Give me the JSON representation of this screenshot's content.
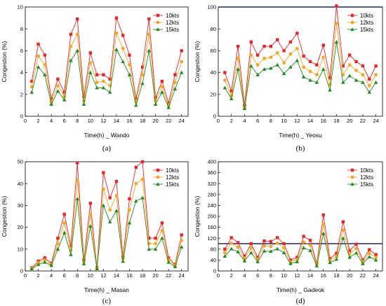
{
  "chart_data": [
    {
      "panel": "(a)",
      "type": "line",
      "xlabel": "Time(h) _ Wando",
      "ylabel": "Congestion (%)",
      "xlim": [
        0,
        25
      ],
      "ylim": [
        0,
        10
      ],
      "xticks": [
        0,
        2,
        4,
        6,
        8,
        10,
        12,
        14,
        16,
        18,
        20,
        22,
        24
      ],
      "yticks": [
        0,
        2,
        4,
        6,
        8,
        10
      ],
      "reference_line": null,
      "legend_position": "top-right",
      "x": [
        1,
        2,
        3,
        4,
        5,
        6,
        7,
        8,
        9,
        10,
        11,
        12,
        13,
        14,
        15,
        16,
        17,
        18,
        19,
        20,
        21,
        22,
        23,
        24
      ],
      "series": [
        {
          "name": "10kts",
          "color": "#e8262a",
          "marker": "square",
          "values": [
            3.2,
            6.6,
            5.6,
            1.6,
            3.4,
            2.2,
            7.5,
            8.9,
            1.8,
            5.8,
            3.8,
            3.8,
            3.4,
            9.0,
            7.4,
            5.6,
            1.6,
            4.5,
            8.9,
            1.7,
            3.2,
            1.2,
            3.8,
            6.0
          ]
        },
        {
          "name": "12kts",
          "color": "#f5a623",
          "marker": "circle",
          "values": [
            2.7,
            5.5,
            4.7,
            1.3,
            2.8,
            1.8,
            6.4,
            7.5,
            1.4,
            4.9,
            3.1,
            3.2,
            2.8,
            7.6,
            6.2,
            4.7,
            1.3,
            3.8,
            7.5,
            1.4,
            2.7,
            1.0,
            3.1,
            5.0
          ]
        },
        {
          "name": "15kts",
          "color": "#1f8a1f",
          "marker": "triangle",
          "values": [
            2.2,
            4.5,
            3.8,
            1.1,
            2.3,
            1.5,
            5.1,
            6.0,
            1.1,
            4.0,
            2.6,
            2.6,
            2.2,
            6.1,
            5.0,
            3.8,
            1.0,
            3.0,
            6.0,
            1.1,
            2.2,
            0.8,
            2.5,
            4.0
          ]
        }
      ]
    },
    {
      "panel": "(b)",
      "type": "line",
      "xlabel": "Time(h) _ Yeosu",
      "ylabel": "Congestion (%)",
      "xlim": [
        0,
        25
      ],
      "ylim": [
        0,
        100
      ],
      "xticks": [
        0,
        2,
        4,
        6,
        8,
        10,
        12,
        14,
        16,
        18,
        20,
        22,
        24
      ],
      "yticks": [
        0,
        20,
        40,
        60,
        80,
        100
      ],
      "reference_line": 100,
      "legend_position": "top-right",
      "x": [
        1,
        2,
        3,
        4,
        5,
        6,
        7,
        8,
        9,
        10,
        11,
        12,
        13,
        14,
        15,
        16,
        17,
        18,
        19,
        20,
        21,
        22,
        23,
        24
      ],
      "series": [
        {
          "name": "10kts",
          "color": "#e8262a",
          "marker": "square",
          "values": [
            40,
            23,
            64,
            10,
            68,
            56,
            64,
            64,
            70,
            60,
            68,
            76,
            55,
            50,
            47,
            65,
            35,
            101,
            46,
            56,
            50,
            46,
            34,
            46
          ]
        },
        {
          "name": "12kts",
          "color": "#f5a623",
          "marker": "circle",
          "values": [
            33,
            19,
            53,
            8,
            56,
            47,
            53,
            54,
            58,
            49,
            57,
            62,
            45,
            41,
            38,
            54,
            29,
            85,
            38,
            47,
            42,
            38,
            28,
            38
          ]
        },
        {
          "name": "15kts",
          "color": "#1f8a1f",
          "marker": "triangle",
          "values": [
            26,
            16,
            43,
            7,
            46,
            38,
            43,
            44,
            47,
            39,
            45,
            51,
            36,
            33,
            31,
            43,
            24,
            68,
            31,
            37,
            33,
            31,
            22,
            31
          ]
        }
      ]
    },
    {
      "panel": "(c)",
      "type": "line",
      "xlabel": "Time(h) _ Masan",
      "ylabel": "Congestion (%)",
      "xlim": [
        0,
        25
      ],
      "ylim": [
        0,
        50
      ],
      "xticks": [
        0,
        2,
        4,
        6,
        8,
        10,
        12,
        14,
        16,
        18,
        20,
        22,
        24
      ],
      "yticks": [
        0,
        10,
        20,
        30,
        40,
        50
      ],
      "reference_line": null,
      "legend_position": "top-right",
      "x": [
        1,
        2,
        3,
        4,
        5,
        6,
        7,
        8,
        9,
        10,
        11,
        12,
        13,
        14,
        15,
        16,
        17,
        18,
        19,
        20,
        21,
        22,
        23,
        24
      ],
      "series": [
        {
          "name": "10kts",
          "color": "#e8262a",
          "marker": "square",
          "values": [
            1.5,
            4.5,
            6,
            3.5,
            15,
            26,
            11.5,
            49.5,
            5,
            31,
            1.5,
            45,
            33.5,
            41,
            6.5,
            33,
            47.5,
            50,
            15,
            15,
            22,
            6,
            3,
            16.5
          ]
        },
        {
          "name": "12kts",
          "color": "#f5a623",
          "marker": "circle",
          "values": [
            1.3,
            3.8,
            5,
            3,
            12.5,
            22,
            9.5,
            41.5,
            4.2,
            26,
            1.3,
            37.5,
            28,
            34.5,
            5.5,
            28,
            40,
            42,
            12.5,
            12.5,
            18.5,
            5,
            2.5,
            14
          ]
        },
        {
          "name": "15kts",
          "color": "#1f8a1f",
          "marker": "triangle",
          "values": [
            1,
            3,
            4,
            2.5,
            10,
            17.5,
            7.5,
            33,
            3.3,
            20.5,
            1,
            30,
            22.5,
            27.5,
            4.4,
            22,
            32,
            33.5,
            10,
            10,
            15,
            4,
            2,
            11
          ]
        }
      ]
    },
    {
      "panel": "(d)",
      "type": "line",
      "xlabel": "Time(h) _ Gadeok",
      "ylabel": "Congestion (%)",
      "xlim": [
        0,
        25
      ],
      "ylim": [
        0,
        400
      ],
      "xticks": [
        0,
        2,
        4,
        6,
        8,
        10,
        12,
        14,
        16,
        18,
        20,
        22,
        24
      ],
      "yticks": [
        0,
        40,
        80,
        120,
        160,
        200,
        240,
        280,
        320,
        360,
        400
      ],
      "reference_line": 100,
      "legend_position": "top-right",
      "x": [
        1,
        2,
        3,
        4,
        5,
        6,
        7,
        8,
        9,
        10,
        11,
        12,
        13,
        14,
        15,
        16,
        17,
        18,
        19,
        20,
        21,
        22,
        23,
        24
      ],
      "series": [
        {
          "name": "10kts",
          "color": "#e8262a",
          "marker": "square",
          "values": [
            80,
            122,
            104,
            55,
            100,
            50,
            110,
            108,
            122,
            100,
            40,
            50,
            127,
            112,
            28,
            205,
            46,
            65,
            180,
            75,
            98,
            40,
            78,
            60
          ]
        },
        {
          "name": "12kts",
          "color": "#f5a623",
          "marker": "circle",
          "values": [
            67,
            102,
            87,
            46,
            84,
            42,
            92,
            90,
            102,
            84,
            33,
            42,
            106,
            94,
            24,
            171,
            39,
            54,
            150,
            63,
            82,
            34,
            65,
            50
          ]
        },
        {
          "name": "15kts",
          "color": "#1f8a1f",
          "marker": "triangle",
          "values": [
            54,
            81,
            70,
            37,
            67,
            34,
            73,
            72,
            81,
            67,
            27,
            34,
            85,
            75,
            19,
            137,
            31,
            43,
            120,
            50,
            66,
            27,
            52,
            40
          ]
        }
      ]
    }
  ]
}
